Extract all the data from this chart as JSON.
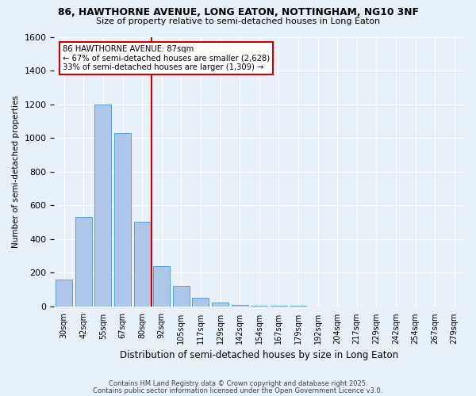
{
  "title1": "86, HAWTHORNE AVENUE, LONG EATON, NOTTINGHAM, NG10 3NF",
  "title2": "Size of property relative to semi-detached houses in Long Eaton",
  "xlabel": "Distribution of semi-detached houses by size in Long Eaton",
  "ylabel": "Number of semi-detached properties",
  "categories": [
    "30sqm",
    "42sqm",
    "55sqm",
    "67sqm",
    "80sqm",
    "92sqm",
    "105sqm",
    "117sqm",
    "129sqm",
    "142sqm",
    "154sqm",
    "167sqm",
    "179sqm",
    "192sqm",
    "204sqm",
    "217sqm",
    "229sqm",
    "242sqm",
    "254sqm",
    "267sqm",
    "279sqm"
  ],
  "bar_values": [
    160,
    530,
    1200,
    1030,
    500,
    240,
    120,
    50,
    20,
    8,
    4,
    2,
    1,
    0,
    0,
    0,
    0,
    0,
    0,
    0,
    0
  ],
  "bar_color": "#aec6e8",
  "bar_edge_color": "#5a9fd4",
  "annotation_title": "86 HAWTHORNE AVENUE: 87sqm",
  "annotation_line1": "← 67% of semi-detached houses are smaller (2,628)",
  "annotation_line2": "33% of semi-detached houses are larger (1,309) →",
  "annotation_box_color": "#ffffff",
  "annotation_box_edge": "#cc0000",
  "vline_color": "#cc0000",
  "ylim": [
    0,
    1600
  ],
  "yticks": [
    0,
    200,
    400,
    600,
    800,
    1000,
    1200,
    1400,
    1600
  ],
  "background_color": "#e8f0f8",
  "footer1": "Contains HM Land Registry data © Crown copyright and database right 2025.",
  "footer2": "Contains public sector information licensed under the Open Government Licence v3.0.",
  "vline_bin_idx": 4,
  "n_bins": 21
}
